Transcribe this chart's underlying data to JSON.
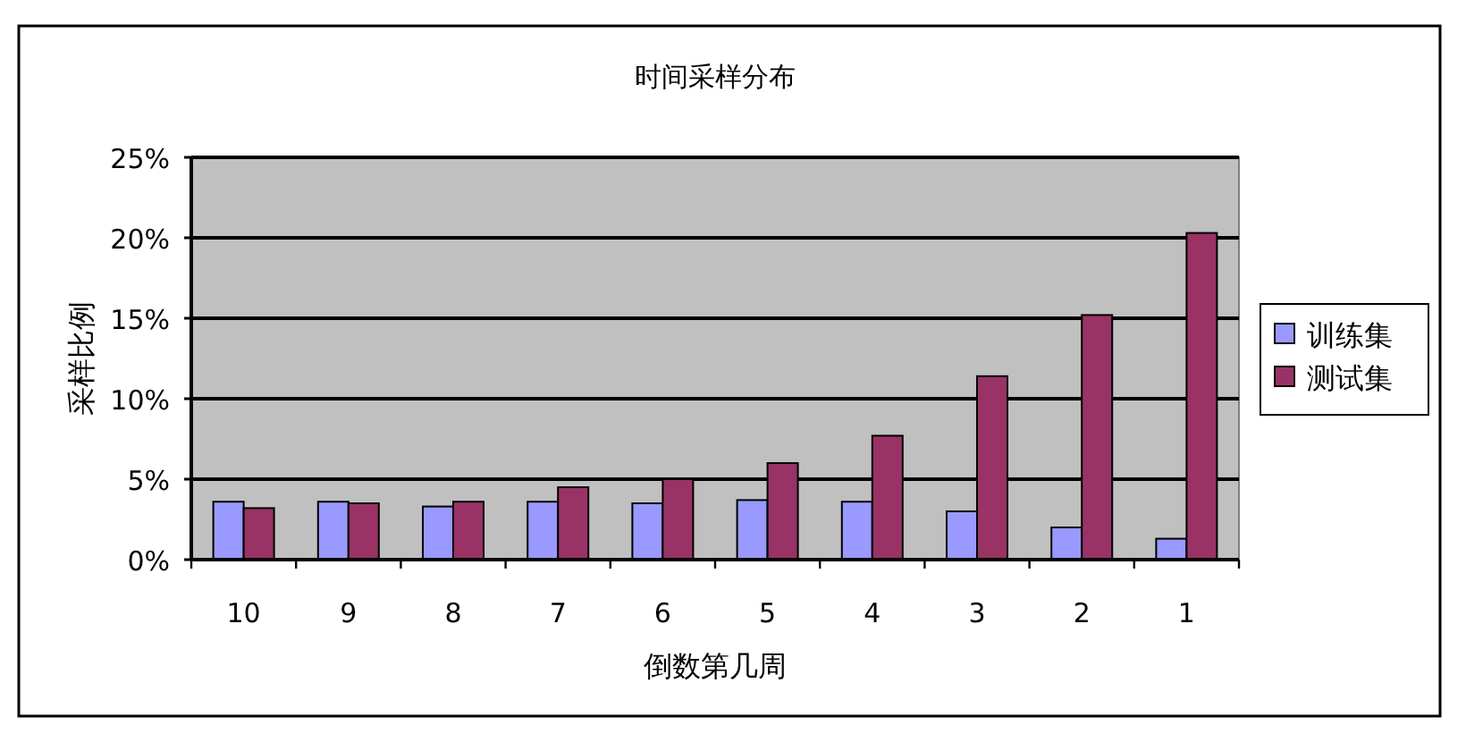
{
  "chart_data": {
    "type": "bar",
    "title": "时间采样分布",
    "xlabel": "倒数第几周",
    "ylabel": "采样比例",
    "categories": [
      "10",
      "9",
      "8",
      "7",
      "6",
      "5",
      "4",
      "3",
      "2",
      "1"
    ],
    "series": [
      {
        "name": "训练集",
        "color": "#9999ff",
        "values": [
          3.6,
          3.6,
          3.3,
          3.6,
          3.5,
          3.7,
          3.6,
          3.0,
          2.0,
          1.3
        ]
      },
      {
        "name": "测试集",
        "color": "#993366",
        "values": [
          3.2,
          3.5,
          3.6,
          4.5,
          5.0,
          6.0,
          7.7,
          11.4,
          15.2,
          20.3
        ]
      }
    ],
    "ylim": [
      0,
      25
    ],
    "yticks": [
      {
        "value": 0,
        "label": "0%"
      },
      {
        "value": 5,
        "label": "5%"
      },
      {
        "value": 10,
        "label": "10%"
      },
      {
        "value": 15,
        "label": "15%"
      },
      {
        "value": 20,
        "label": "20%"
      },
      {
        "value": 25,
        "label": "25%"
      }
    ],
    "grid": "y",
    "legend": "right"
  }
}
